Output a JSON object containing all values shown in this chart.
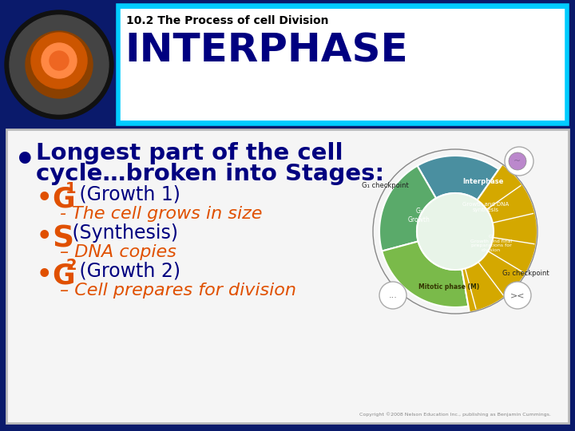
{
  "bg_outer": "#0a1a6b",
  "bg_header": "#ffffff",
  "bg_content": "#f5f5f5",
  "header_subtitle": "10.2 The Process of cell Division",
  "header_title": "INTERPHASE",
  "header_title_color": "#000080",
  "header_subtitle_color": "#000000",
  "header_border_color": "#00ccff",
  "bullet_main_color": "#000080",
  "bullet_main_text1": "Longest part of the cell",
  "bullet_main_text2": "cycle…broken into Stages:",
  "g1_label": "G",
  "g1_sub": "1",
  "g1_rest": " (Growth 1)",
  "g1_desc": "- The cell grows in size",
  "s_label": "S",
  "s_rest": " (Synthesis)",
  "s_desc": "– DNA copies",
  "g2_label": "G",
  "g2_sub": "2",
  "g2_rest": " (Growth 2)",
  "g2_desc": "– Cell prepares for division",
  "orange_color": "#e05000",
  "dark_blue": "#000080",
  "italic_orange": "#e05000",
  "copyright": "Copyright ©2008 Nelson Education Inc., publishing as Benjamin Cummings.",
  "fig_width": 7.2,
  "fig_height": 5.4,
  "fig_dpi": 100
}
